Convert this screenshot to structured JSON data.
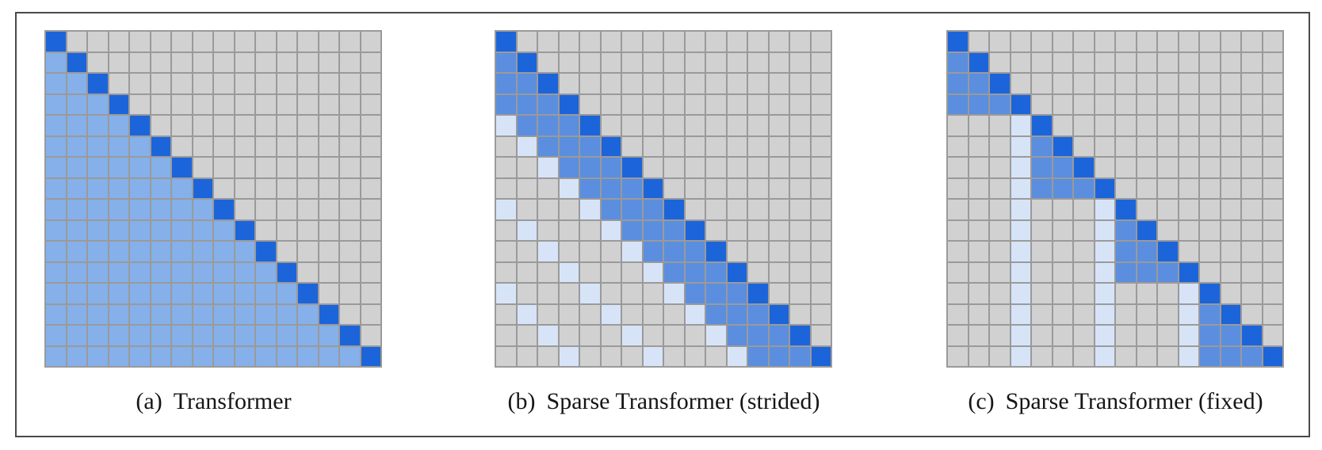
{
  "figure": {
    "background": "#ffffff",
    "frame_border_color": "#4a4a4a"
  },
  "colors": {
    "grid_line": "#9a9a9a",
    "cells": {
      "D": "#1c64da",
      "A": "#86b0e9",
      "M": "#5b8ede",
      "L": "#d7e4f8",
      ".": "#d1d1d1"
    },
    "cell_legend": {
      "D": "dark-blue diagonal cell",
      "A": "light-medium-blue lower-triangle cell (panel a)",
      "M": "medium-blue local band cell",
      "L": "pale-blue strided/fixed column cell",
      ".": "gray unattended cell"
    }
  },
  "panels": [
    {
      "id": "transformer",
      "caption_label": "(a)",
      "caption_text": "Transformer",
      "grid_size": "16x16",
      "grid": [
        "D...............",
        "AD..............",
        "AAD.............",
        "AAAD............",
        "AAAAD...........",
        "AAAAAD..........",
        "AAAAAAD.........",
        "AAAAAAAD........",
        "AAAAAAAAD.......",
        "AAAAAAAAAD......",
        "AAAAAAAAAAD.....",
        "AAAAAAAAAAAD....",
        "AAAAAAAAAAAAD...",
        "AAAAAAAAAAAAAD..",
        "AAAAAAAAAAAAAAD.",
        "AAAAAAAAAAAAAAAD"
      ]
    },
    {
      "id": "sparse-strided",
      "caption_label": "(b)",
      "caption_text": "Sparse Transformer (strided)",
      "grid_size": "16x16",
      "grid": [
        "D...............",
        "MD..............",
        "MMD.............",
        "MMMD............",
        "LMMMD...........",
        ".LMMMD..........",
        "..LMMMD.........",
        "...LMMMD........",
        "L...LMMMD.......",
        ".L...LMMMD......",
        "..L...LMMMD.....",
        "...L...LMMMD....",
        "L...L...LMMMD...",
        ".L...L...LMMMD..",
        "..L...L...LMMMD.",
        "...L...L...LMMMD"
      ]
    },
    {
      "id": "sparse-fixed",
      "caption_label": "(c)",
      "caption_text": "Sparse Transformer (fixed)",
      "grid_size": "16x16",
      "grid": [
        "D...............",
        "MD..............",
        "MMD.............",
        "MMMD............",
        "...LD...........",
        "...LMD..........",
        "...LMMD.........",
        "...LMMMD........",
        "...L...LD.......",
        "...L...LMD......",
        "...L...LMMD.....",
        "...L...LMMMD....",
        "...L...L...LD...",
        "...L...L...LMD..",
        "...L...L...LMMD.",
        "...L...L...LMMMD"
      ]
    }
  ]
}
